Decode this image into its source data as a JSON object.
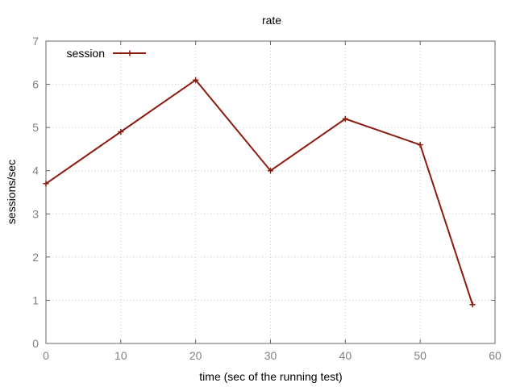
{
  "chart_data": {
    "type": "line",
    "title": "rate",
    "xlabel": "time (sec of the running test)",
    "ylabel": "sessions/sec",
    "xlim": [
      0,
      60
    ],
    "ylim": [
      0,
      7
    ],
    "xticks": [
      "0",
      "10",
      "20",
      "30",
      "40",
      "50",
      "60"
    ],
    "yticks": [
      "0",
      "1",
      "2",
      "3",
      "4",
      "5",
      "6",
      "7"
    ],
    "grid": true,
    "legend_position": "top-left",
    "series": [
      {
        "name": "session",
        "color": "#8b1a0e",
        "marker": "plus",
        "x": [
          0,
          10,
          20,
          30,
          40,
          50,
          57
        ],
        "y": [
          3.7,
          4.9,
          6.1,
          4.0,
          5.2,
          4.6,
          0.9
        ]
      }
    ]
  }
}
